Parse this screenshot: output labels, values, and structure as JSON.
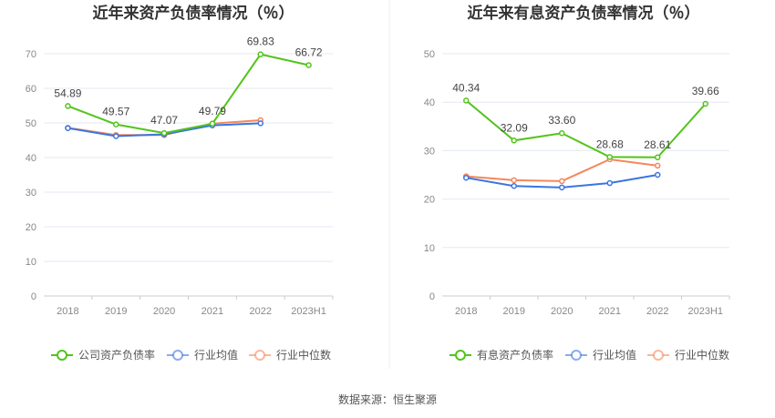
{
  "chart_data": [
    {
      "type": "line",
      "title": "近年来资产负债率情况（％）",
      "categories": [
        "2018",
        "2019",
        "2020",
        "2021",
        "2022",
        "2023H1"
      ],
      "ylim": [
        0,
        70
      ],
      "yticks": [
        0,
        10,
        20,
        30,
        40,
        50,
        60,
        70
      ],
      "series": [
        {
          "name": "公司资产负债率",
          "color": "#52c41a",
          "values": [
            54.89,
            49.57,
            47.07,
            49.79,
            69.83,
            66.72
          ],
          "labels": [
            "54.89",
            "49.57",
            "47.07",
            "49.79",
            "69.83",
            "66.72"
          ]
        },
        {
          "name": "行业均值",
          "color": "#3a75e0",
          "values": [
            48.5,
            46.2,
            46.7,
            49.3,
            49.9,
            null
          ]
        },
        {
          "name": "行业中位数",
          "color": "#f5875a",
          "values": [
            48.6,
            46.5,
            46.5,
            49.8,
            50.8,
            null
          ]
        }
      ]
    },
    {
      "type": "line",
      "title": "近年来有息资产负债率情况（％）",
      "categories": [
        "2018",
        "2019",
        "2020",
        "2021",
        "2022",
        "2023H1"
      ],
      "ylim": [
        0,
        50
      ],
      "yticks": [
        0,
        10,
        20,
        30,
        40,
        50
      ],
      "series": [
        {
          "name": "有息资产负债率",
          "color": "#52c41a",
          "values": [
            40.34,
            32.09,
            33.6,
            28.68,
            28.61,
            39.66
          ],
          "labels": [
            "40.34",
            "32.09",
            "33.60",
            "28.68",
            "28.61",
            "39.66"
          ]
        },
        {
          "name": "行业均值",
          "color": "#3a75e0",
          "values": [
            24.4,
            22.7,
            22.4,
            23.3,
            25.0,
            null
          ]
        },
        {
          "name": "行业中位数",
          "color": "#f5875a",
          "values": [
            24.7,
            23.9,
            23.7,
            28.2,
            26.9,
            null
          ]
        }
      ]
    }
  ],
  "source": "数据来源：恒生聚源"
}
